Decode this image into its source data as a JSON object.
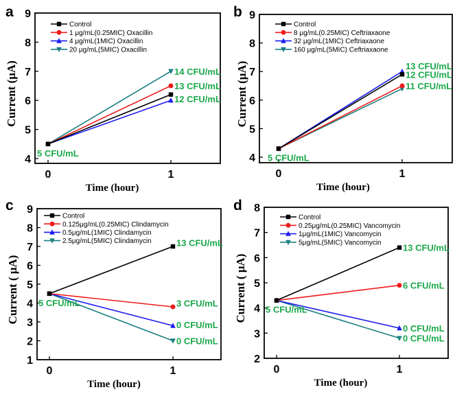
{
  "figure": {
    "annotation_color": "#1aa84a",
    "series_colors": {
      "Control": "#000000",
      "0.25MIC": "#ee1c1c",
      "1MIC": "#1a1aee",
      "5MIC": "#1a7f80"
    },
    "markers": {
      "Control": "square",
      "0.25MIC": "circle",
      "1MIC": "triangle-up",
      "5MIC": "triangle-down"
    }
  },
  "chart_data": [
    {
      "type": "line",
      "panel": "a",
      "title": "",
      "xlabel": "Time (hour)",
      "ylabel": "Current (μA)",
      "x": [
        0,
        1
      ],
      "x_ticks": [
        "0",
        "1"
      ],
      "xlim": [
        -0.1,
        1.35
      ],
      "ylim": [
        3.8,
        9
      ],
      "y_ticks": [
        "4",
        "5",
        "6",
        "7",
        "8",
        "9"
      ],
      "grid": false,
      "legend_position": "top-left",
      "series": [
        {
          "name": "Control",
          "key": "Control",
          "values": [
            4.5,
            6.2
          ]
        },
        {
          "name": "1 μg/mL(0.25MIC) Oxacillin",
          "key": "0.25MIC",
          "values": [
            4.5,
            6.5
          ]
        },
        {
          "name": "4 μg/mL(1MIC) Oxacillin",
          "key": "1MIC",
          "values": [
            4.5,
            6.0
          ]
        },
        {
          "name": "20 μg/mL(5MIC) Oxacillin",
          "key": "5MIC",
          "values": [
            4.5,
            7.0
          ]
        }
      ],
      "annotations": [
        {
          "text": "5 CFU/mL",
          "x": 0,
          "y": 4.5,
          "anchor": "below"
        },
        {
          "text": "14 CFU/mL",
          "x": 1,
          "y": 7.0,
          "anchor": "right"
        },
        {
          "text": "13 CFU/mL",
          "x": 1,
          "y": 6.5,
          "anchor": "right"
        },
        {
          "text": "12 CFU/mL",
          "x": 1,
          "y": 6.05,
          "anchor": "right"
        }
      ]
    },
    {
      "type": "line",
      "panel": "b",
      "title": "",
      "xlabel": "Time (hour)",
      "ylabel": "Current (μA)",
      "x": [
        0,
        1
      ],
      "x_ticks": [
        "0",
        "1"
      ],
      "xlim": [
        -0.1,
        1.35
      ],
      "ylim": [
        3.8,
        9
      ],
      "y_ticks": [
        "4",
        "5",
        "6",
        "7",
        "8",
        "9"
      ],
      "grid": false,
      "legend_position": "top-left",
      "series": [
        {
          "name": "Control",
          "key": "Control",
          "values": [
            4.3,
            6.9
          ]
        },
        {
          "name": "8 μg/mL(0.25MIC) Ceftriaxaone",
          "key": "0.25MIC",
          "values": [
            4.3,
            6.5
          ]
        },
        {
          "name": "32 μg/mL(1MIC) Ceftriaxaone",
          "key": "1MIC",
          "values": [
            4.3,
            7.0
          ]
        },
        {
          "name": "160 μg/mL(5MIC) Ceftriaxaone",
          "key": "5MIC",
          "values": [
            4.3,
            6.4
          ]
        }
      ],
      "annotations": [
        {
          "text": "5 CFU/mL",
          "x": 0,
          "y": 4.3,
          "anchor": "below"
        },
        {
          "text": "13 CFU/mL",
          "x": 1,
          "y": 7.2,
          "anchor": "right"
        },
        {
          "text": "12 CFU/mL",
          "x": 1,
          "y": 6.9,
          "anchor": "right"
        },
        {
          "text": "11 CFU/mL",
          "x": 1,
          "y": 6.5,
          "anchor": "right"
        }
      ]
    },
    {
      "type": "line",
      "panel": "c",
      "title": "",
      "xlabel": "Time (hour)",
      "ylabel": "Current ( μA)",
      "x": [
        0,
        1
      ],
      "x_ticks": [
        "0",
        "1"
      ],
      "xlim": [
        -0.1,
        1.35
      ],
      "ylim": [
        1,
        9
      ],
      "y_ticks": [
        "1",
        "2",
        "3",
        "4",
        "5",
        "6",
        "7",
        "8",
        "9"
      ],
      "grid": false,
      "legend_position": "top-left",
      "series": [
        {
          "name": "Control",
          "key": "Control",
          "values": [
            4.5,
            7.0
          ]
        },
        {
          "name": "0.125μg/mL(0.25MIC) Clindamycin",
          "key": "0.25MIC",
          "values": [
            4.5,
            3.8
          ]
        },
        {
          "name": "0.5μg/mL(1MIC) Clindamycin",
          "key": "1MIC",
          "values": [
            4.5,
            2.8
          ]
        },
        {
          "name": "2.5μg/mL(5MIC) Clindamycin",
          "key": "5MIC",
          "values": [
            4.5,
            2.0
          ]
        }
      ],
      "annotations": [
        {
          "text": "5 CFU/mL",
          "x": 0,
          "y": 4.5,
          "anchor": "below"
        },
        {
          "text": "13 CFU/mL",
          "x": 1,
          "y": 7.2,
          "anchor": "right"
        },
        {
          "text": "3 CFU/mL",
          "x": 1,
          "y": 4.0,
          "anchor": "right"
        },
        {
          "text": "0 CFU/mL",
          "x": 1,
          "y": 2.85,
          "anchor": "right"
        },
        {
          "text": "0 CFU/mL",
          "x": 1,
          "y": 2.0,
          "anchor": "right"
        }
      ]
    },
    {
      "type": "line",
      "panel": "d",
      "title": "",
      "xlabel": "Time (hour)",
      "ylabel": "Current ( μA)",
      "x": [
        0,
        1
      ],
      "x_ticks": [
        "0",
        "1"
      ],
      "xlim": [
        -0.1,
        1.35
      ],
      "ylim": [
        2,
        8
      ],
      "y_ticks": [
        "2",
        "3",
        "4",
        "5",
        "6",
        "7",
        "8"
      ],
      "grid": false,
      "legend_position": "top-left",
      "series": [
        {
          "name": "Control",
          "key": "Control",
          "values": [
            4.3,
            6.4
          ]
        },
        {
          "name": "0.25μg/mL(0.25MIC) Vancomycin",
          "key": "0.25MIC",
          "values": [
            4.3,
            4.9
          ]
        },
        {
          "name": "1μg/mL(1MIC) Vancomycin",
          "key": "1MIC",
          "values": [
            4.3,
            3.2
          ]
        },
        {
          "name": "5μg/mL(5MIC) Vancomycin",
          "key": "5MIC",
          "values": [
            4.3,
            2.8
          ]
        }
      ],
      "annotations": [
        {
          "text": "5 CFU/mL",
          "x": 0,
          "y": 4.3,
          "anchor": "below"
        },
        {
          "text": "13 CFU/mL",
          "x": 1,
          "y": 6.4,
          "anchor": "right"
        },
        {
          "text": "6 CFU/mL",
          "x": 1,
          "y": 4.9,
          "anchor": "right"
        },
        {
          "text": "0 CFU/mL",
          "x": 1,
          "y": 3.2,
          "anchor": "right"
        },
        {
          "text": "0 CFU/mL",
          "x": 1,
          "y": 2.8,
          "anchor": "right"
        }
      ]
    }
  ]
}
